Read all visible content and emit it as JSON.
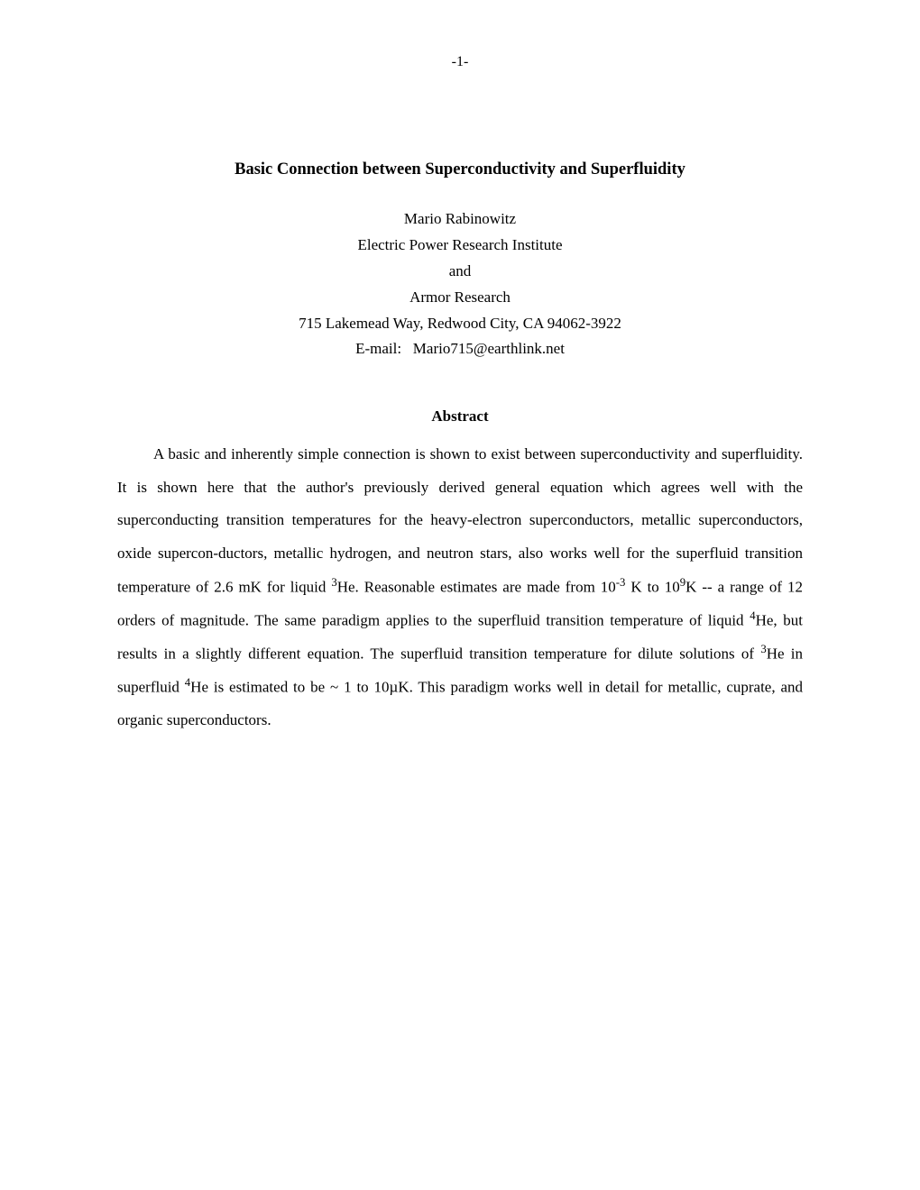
{
  "page": {
    "number": "-1-",
    "background_color": "#ffffff",
    "text_color": "#000000"
  },
  "title": "Basic Connection between Superconductivity and Superfluidity",
  "author": {
    "name": "Mario Rabinowitz",
    "affiliation1": "Electric Power Research Institute",
    "conjunction": "and",
    "affiliation2": "Armor Research",
    "address": "715 Lakemead Way, Redwood City, CA 94062-3922",
    "email_label": "E-mail:",
    "email": "Mario715@earthlink.net"
  },
  "abstract": {
    "heading": "Abstract",
    "text_part1": "A basic and inherently simple connection is shown to exist between superconductivity and superfluidity.  It is shown here  that the author's previously derived general equation  which agrees well with the superconducting transition temperatures for the heavy-electron superconductors, metallic superconductors, oxide supercon-ductors, metallic hydrogen, and neutron stars, also works well for the superfluid transition temperature of 2.6 mK for liquid ",
    "sup1": "3",
    "text_part2": "He. Reasonable estimates are made from 10",
    "sup2": "-3",
    "text_part3": " K to 10",
    "sup3": "9",
    "text_part4": "K -- a range of 12 orders of magnitude.  The same paradigm applies to the superfluid transition temperature of liquid ",
    "sup4": "4",
    "text_part5": "He, but results in a slightly different equation.  The superfluid transition temperature for  dilute solutions of  ",
    "sup5": "3",
    "text_part6": "He in superfluid ",
    "sup6": "4",
    "text_part7": "He is estimated to be ~ 1 to 10µK.  This paradigm works well in detail for metallic, cuprate, and organic superconductors."
  },
  "typography": {
    "font_family": "Palatino",
    "title_fontsize": 18.5,
    "body_fontsize": 17,
    "line_height": 2.15
  }
}
